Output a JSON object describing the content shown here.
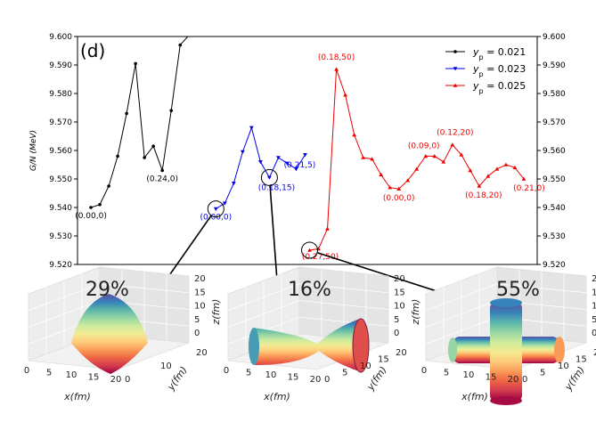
{
  "chart_data": {
    "type": "line",
    "panel_label": "(d)",
    "ylabel": "G/N (MeV)",
    "ylim": [
      9.52,
      9.6
    ],
    "yticks": [
      "9.520",
      "9.530",
      "9.540",
      "9.550",
      "9.560",
      "9.570",
      "9.580",
      "9.590",
      "9.600"
    ],
    "grid": false,
    "legend_position": "top-right",
    "series": [
      {
        "name": "y_p = 0.021",
        "legend_sub": "p",
        "legend_value": " = 0.021",
        "color": "#000000",
        "marker": "circle",
        "x": [
          0,
          1,
          2,
          3,
          4,
          5,
          6,
          7,
          8,
          9,
          10,
          11
        ],
        "y": [
          9.54,
          9.541,
          9.5475,
          9.558,
          9.573,
          9.5905,
          9.5575,
          9.5615,
          9.553,
          9.574,
          9.597,
          9.6005
        ]
      },
      {
        "name": "y_p = 0.023",
        "legend_sub": "p",
        "legend_value": " = 0.023",
        "color": "#0000ee",
        "marker": "triangle-down",
        "x": [
          14,
          15,
          16,
          17,
          18,
          19,
          20,
          21,
          22,
          23,
          24
        ],
        "y": [
          9.5395,
          9.5415,
          9.5485,
          9.5595,
          9.568,
          9.556,
          9.5505,
          9.5575,
          9.5555,
          9.5535,
          9.5585
        ]
      },
      {
        "name": "y_p = 0.025",
        "legend_sub": "p",
        "legend_value": " = 0.025",
        "color": "#ee0000",
        "marker": "triangle-up",
        "x": [
          24.5,
          25.5,
          26.5,
          27.5,
          28.5,
          29.5,
          30.5,
          31.5,
          32.5,
          33.5,
          34.5,
          35.5,
          36.5,
          37.5,
          38.5,
          39.5,
          40.5,
          41.5,
          42.5,
          43.5,
          44.5,
          45.5,
          46.5,
          47.5,
          48.5
        ],
        "y": [
          9.525,
          9.5255,
          9.5325,
          9.5885,
          9.5795,
          9.5655,
          9.5575,
          9.557,
          9.5515,
          9.547,
          9.5465,
          9.5495,
          9.5535,
          9.558,
          9.558,
          9.556,
          9.562,
          9.5585,
          9.553,
          9.5475,
          9.551,
          9.5535,
          9.555,
          9.554,
          9.55
        ]
      }
    ],
    "annotations": [
      {
        "text": "(0.00,0)",
        "color": "#000000",
        "series": 0,
        "point": 0,
        "dx": 0,
        "dy": 12
      },
      {
        "text": "(0.24,0)",
        "color": "#000000",
        "series": 0,
        "point": 8,
        "dx": 0,
        "dy": 12
      },
      {
        "text": "(0.00,0)",
        "color": "#0000ee",
        "series": 1,
        "point": 0,
        "dx": 0,
        "dy": 12
      },
      {
        "text": "(0.18,15)",
        "color": "#0000ee",
        "series": 1,
        "point": 6,
        "dx": 8,
        "dy": 14
      },
      {
        "text": "(0.21,5)",
        "color": "#0000ee",
        "series": 1,
        "point": 10,
        "dx": -6,
        "dy": 14
      },
      {
        "text": "(0.27,50)",
        "color": "#ee0000",
        "series": 2,
        "point": 0,
        "dx": 12,
        "dy": 10
      },
      {
        "text": "(0.18,50)",
        "color": "#ee0000",
        "series": 2,
        "point": 3,
        "dx": 0,
        "dy": -11
      },
      {
        "text": "(0.00,0)",
        "color": "#ee0000",
        "series": 2,
        "point": 10,
        "dx": 0,
        "dy": 13
      },
      {
        "text": "(0.09,0)",
        "color": "#ee0000",
        "series": 2,
        "point": 13,
        "dx": -2,
        "dy": -9
      },
      {
        "text": "(0.12,20)",
        "color": "#ee0000",
        "series": 2,
        "point": 16,
        "dx": 3,
        "dy": -11
      },
      {
        "text": "(0.18,20)",
        "color": "#ee0000",
        "series": 2,
        "point": 19,
        "dx": 5,
        "dy": 13
      },
      {
        "text": "(0.21,0)",
        "color": "#ee0000",
        "series": 2,
        "point": 24,
        "dx": 6,
        "dy": 13
      }
    ],
    "insets": [
      {
        "percent": "29%",
        "shape": "dome",
        "series": 1,
        "point": 0,
        "xlabel": "x(fm)",
        "ylabel": "y(fm)",
        "zlabel": "z(fm)",
        "xticks": [
          "0",
          "5",
          "10",
          "15",
          "20"
        ],
        "yticks": [
          "0",
          "10",
          "20"
        ],
        "zticks": [
          "0",
          "5",
          "10",
          "15",
          "20"
        ]
      },
      {
        "percent": "16%",
        "shape": "hourglass",
        "series": 1,
        "point": 6,
        "xlabel": "x(fm)",
        "ylabel": "y(fm)",
        "zlabel": "z(fm)",
        "xticks": [
          "0",
          "5",
          "10",
          "15",
          "20"
        ],
        "yticks": [
          "0",
          "5",
          "10",
          "15",
          "20"
        ],
        "zticks": [
          "0",
          "5",
          "10",
          "15",
          "20"
        ]
      },
      {
        "percent": "55%",
        "shape": "cross",
        "series": 2,
        "point": 0,
        "xlabel": "x(fm)",
        "ylabel": "y(fm)",
        "zlabel": "z(fm)",
        "xticks": [
          "0",
          "5",
          "10",
          "15",
          "20"
        ],
        "yticks": [
          "0",
          "5",
          "10",
          "15",
          "20"
        ],
        "zticks": [
          "0",
          "5",
          "10",
          "15",
          "20"
        ]
      }
    ]
  }
}
